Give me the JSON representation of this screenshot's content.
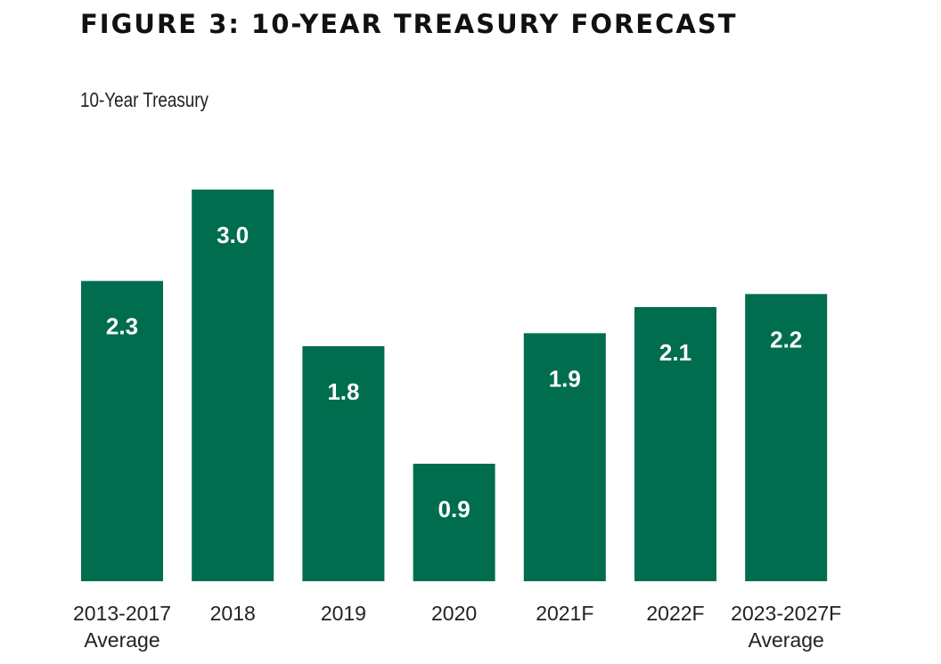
{
  "figure_title": "FIGURE 3: 10-YEAR TREASURY FORECAST",
  "colors": {
    "bar": "#006d4e",
    "value_label": "#ffffff",
    "text": "#222222"
  },
  "chart_data": {
    "type": "bar",
    "title": "FIGURE 3: 10-YEAR TREASURY FORECAST",
    "subtitle": "10-Year Treasury",
    "xlabel": "",
    "ylabel": "",
    "grid": false,
    "legend": "none",
    "ylim": [
      0,
      3.0
    ],
    "categories": [
      [
        "2013-2017",
        "Average"
      ],
      [
        "2018"
      ],
      [
        "2019"
      ],
      [
        "2020"
      ],
      [
        "2021F"
      ],
      [
        "2022F"
      ],
      [
        "2023-2027F",
        "Average"
      ]
    ],
    "values": [
      2.3,
      3.0,
      1.8,
      0.9,
      1.9,
      2.1,
      2.2
    ],
    "data_labels": [
      "2.3",
      "3.0",
      "1.8",
      "0.9",
      "1.9",
      "2.1",
      "2.2"
    ]
  }
}
